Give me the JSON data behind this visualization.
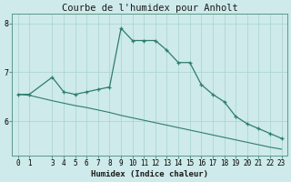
{
  "title": "Courbe de l'humidex pour Anholt",
  "xlabel": "Humidex (Indice chaleur)",
  "ylabel": "",
  "background_color": "#ceeaea",
  "line_color": "#2e7d6e",
  "x_data": [
    0,
    1,
    3,
    4,
    5,
    6,
    7,
    8,
    9,
    10,
    11,
    12,
    13,
    14,
    15,
    16,
    17,
    18,
    19,
    20,
    21,
    22,
    23
  ],
  "y_main": [
    6.55,
    6.55,
    6.9,
    6.6,
    6.55,
    6.6,
    6.65,
    6.7,
    7.9,
    7.65,
    7.65,
    7.65,
    7.45,
    7.2,
    7.2,
    6.75,
    6.55,
    6.4,
    6.1,
    5.95,
    5.85,
    5.75,
    5.65
  ],
  "y_trend": [
    6.55,
    6.53,
    6.42,
    6.37,
    6.32,
    6.28,
    6.23,
    6.18,
    6.12,
    6.07,
    6.02,
    5.97,
    5.92,
    5.87,
    5.82,
    5.77,
    5.72,
    5.67,
    5.62,
    5.57,
    5.52,
    5.47,
    5.43
  ],
  "ylim": [
    5.3,
    8.2
  ],
  "xlim": [
    -0.5,
    23.5
  ],
  "yticks": [
    6,
    7,
    8
  ],
  "xticks": [
    0,
    1,
    3,
    4,
    5,
    6,
    7,
    8,
    9,
    10,
    11,
    12,
    13,
    14,
    15,
    16,
    17,
    18,
    19,
    20,
    21,
    22,
    23
  ],
  "grid_color": "#a8d4cc",
  "title_fontsize": 7.5,
  "axis_fontsize": 6.5,
  "tick_fontsize": 5.5,
  "spine_color": "#5a9a8a"
}
